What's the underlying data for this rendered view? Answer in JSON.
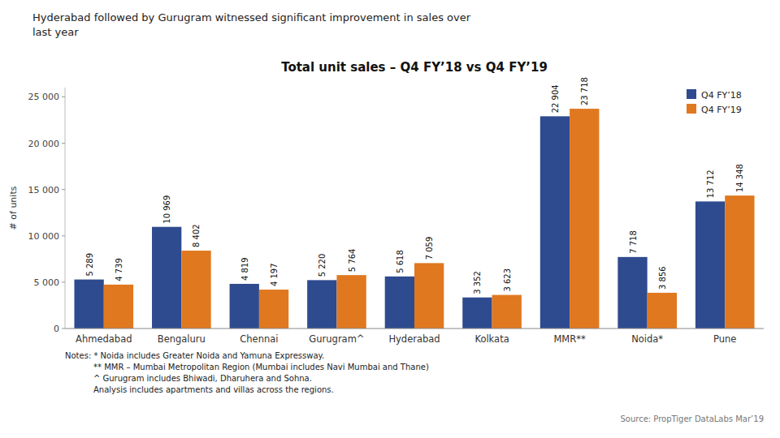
{
  "chart_data": {
    "type": "bar",
    "title": "Total unit sales – Q4 FY’18 vs Q4 FY’19",
    "subtitle": [
      "Hyderabad followed by Gurugram witnessed significant improvement in sales over",
      "last year"
    ],
    "y_label": "# of units",
    "categories": [
      "Ahmedabad",
      "Bengaluru",
      "Chennai",
      "Gurugram^",
      "Hyderabad",
      "Kolkata",
      "MMR**",
      "Noida*",
      "Pune"
    ],
    "series": [
      {
        "name": "Q4 FY’18",
        "color": "#2E4B8F",
        "values": [
          5289,
          10969,
          4819,
          5220,
          5618,
          3352,
          22904,
          7718,
          13712
        ],
        "value_labels": [
          "5 289",
          "10 969",
          "4 819",
          "5 220",
          "5 618",
          "3 352",
          "22 904",
          "7 718",
          "13 712"
        ]
      },
      {
        "name": "Q4 FY’19",
        "color": "#E07820",
        "values": [
          4739,
          8402,
          4197,
          5764,
          7059,
          3623,
          23718,
          3856,
          14348
        ],
        "value_labels": [
          "4 739",
          "8 402",
          "4 197",
          "5 764",
          "7 059",
          "3 623",
          "23 718",
          "3 856",
          "14 348"
        ]
      }
    ],
    "ylim": [
      0,
      26000
    ],
    "yticks": [
      0,
      {
        "value": 5000,
        "label": "5 000"
      },
      {
        "value": 10000,
        "label": "10 000"
      },
      {
        "value": 15000,
        "label": "15 000"
      },
      {
        "value": 20000,
        "label": "20 000"
      },
      {
        "value": 25000,
        "label": "25 000"
      }
    ],
    "grid": false,
    "legend": "upper right",
    "data_labels": true,
    "annotations": [
      "Notes: * Noida includes Greater Noida and Yamuna Expressway.",
      "           ** MMR – Mumbai Metropolitan Region (Mumbai includes Navi Mumbai and Thane)",
      "           ^ Gurugram includes Bhiwadi, Dharuhera and Sohna.",
      "           Analysis includes apartments and villas across the regions.",
      "Source: PropTiger DataLabs Mar’19"
    ]
  }
}
